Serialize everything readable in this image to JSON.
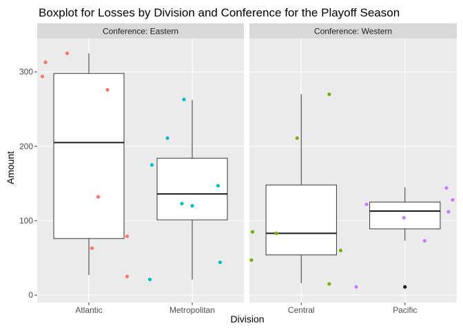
{
  "chart_data": {
    "type": "boxplot",
    "title": "Boxplot for Losses by Division and Conference for the Playoff Season",
    "xlabel": "Division",
    "ylabel": "Amount",
    "ylim": [
      -10,
      345
    ],
    "yticks": [
      0,
      100,
      200,
      300
    ],
    "grid": true,
    "legend": "none",
    "facets": [
      {
        "label": "Conference: Eastern",
        "categories": [
          "Atlantic",
          "Metropolitan"
        ],
        "boxes": [
          {
            "name": "Atlantic",
            "color": "#F8766D",
            "min": 27,
            "q1": 76,
            "median": 205,
            "q3": 298,
            "max": 325,
            "points": [
              {
                "x": -0.42,
                "y": 313
              },
              {
                "x": -0.45,
                "y": 294
              },
              {
                "x": -0.21,
                "y": 325
              },
              {
                "x": 0.18,
                "y": 276
              },
              {
                "x": 0.09,
                "y": 132
              },
              {
                "x": 0.37,
                "y": 79
              },
              {
                "x": 0.03,
                "y": 63
              },
              {
                "x": 0.37,
                "y": 25
              }
            ]
          },
          {
            "name": "Metropolitan",
            "color": "#00BFC4",
            "min": 21,
            "q1": 101,
            "median": 136,
            "q3": 184,
            "max": 262,
            "points": [
              {
                "x": -0.08,
                "y": 263
              },
              {
                "x": -0.24,
                "y": 211
              },
              {
                "x": -0.39,
                "y": 175
              },
              {
                "x": -0.1,
                "y": 123
              },
              {
                "x": 0.0,
                "y": 120
              },
              {
                "x": 0.25,
                "y": 147
              },
              {
                "x": 0.27,
                "y": 44
              },
              {
                "x": -0.41,
                "y": 21
              }
            ]
          }
        ]
      },
      {
        "label": "Conference: Western",
        "categories": [
          "Central",
          "Pacific"
        ],
        "boxes": [
          {
            "name": "Central",
            "color": "#7CAE00",
            "min": 16,
            "q1": 54,
            "median": 83,
            "q3": 148,
            "max": 270,
            "points": [
              {
                "x": 0.27,
                "y": 270
              },
              {
                "x": -0.04,
                "y": 211
              },
              {
                "x": -0.47,
                "y": 85
              },
              {
                "x": -0.24,
                "y": 83
              },
              {
                "x": 0.38,
                "y": 60
              },
              {
                "x": -0.48,
                "y": 47
              },
              {
                "x": 0.27,
                "y": 15
              }
            ]
          },
          {
            "name": "Pacific",
            "color": "#C77CFF",
            "min": 73,
            "q1": 89,
            "median": 113,
            "q3": 125,
            "max": 145,
            "points": [
              {
                "x": 0.4,
                "y": 144
              },
              {
                "x": 0.46,
                "y": 128
              },
              {
                "x": 0.42,
                "y": 112
              },
              {
                "x": -0.37,
                "y": 122
              },
              {
                "x": -0.01,
                "y": 104
              },
              {
                "x": 0.19,
                "y": 73
              },
              {
                "x": -0.47,
                "y": 11
              }
            ],
            "outliers": [
              11
            ]
          }
        ]
      }
    ]
  }
}
